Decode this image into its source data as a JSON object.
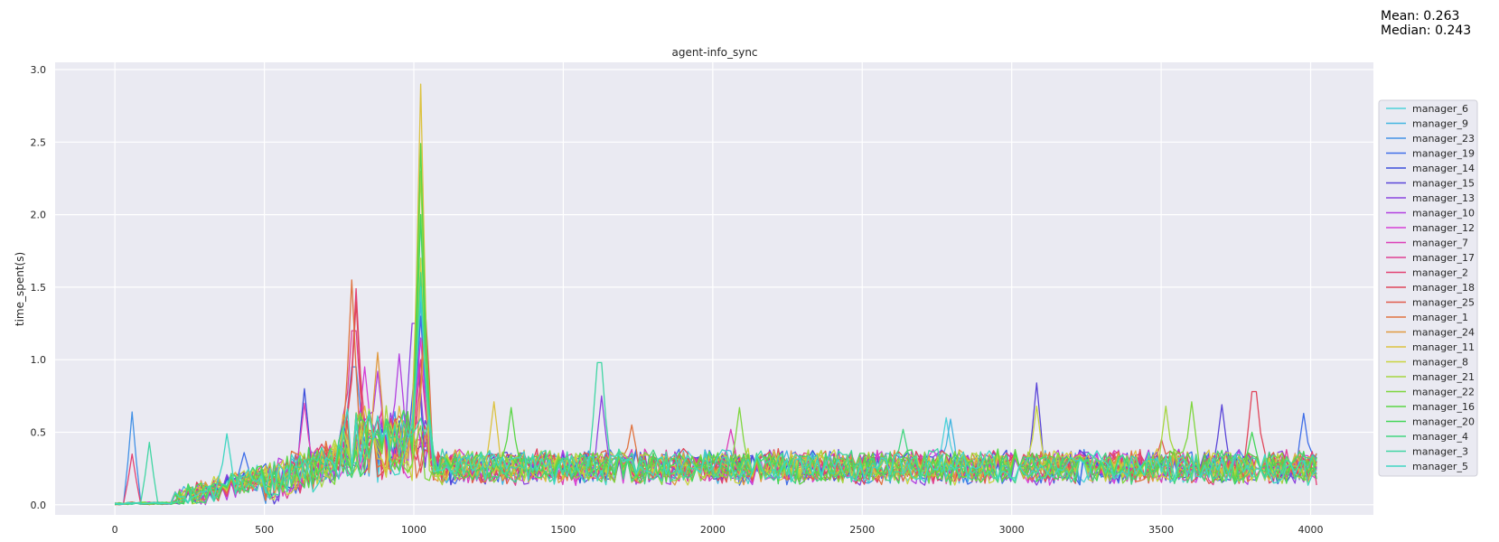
{
  "stats": {
    "mean": "Mean: 0.263",
    "median": "Median: 0.243"
  },
  "chart_data": {
    "type": "line",
    "title": "agent-info_sync",
    "xlabel": "",
    "ylabel": "time_spent(s)",
    "xlim": [
      -200,
      4210
    ],
    "ylim": [
      -0.07,
      3.05
    ],
    "xticks": [
      0,
      500,
      1000,
      1500,
      2000,
      2500,
      3000,
      3500,
      4000
    ],
    "yticks": [
      0.0,
      0.5,
      1.0,
      1.5,
      2.0,
      2.5,
      3.0
    ],
    "xtick_labels": [
      "0",
      "500",
      "1000",
      "1500",
      "2000",
      "2500",
      "3000",
      "3500",
      "4000"
    ],
    "ytick_labels": [
      "0.0",
      "0.5",
      "1.0",
      "1.5",
      "2.0",
      "2.5",
      "3.0"
    ],
    "grid": true,
    "legend_position": "right",
    "background": "#eaeaf2",
    "series_points_count": 280,
    "series_x_range": [
      0,
      4020
    ],
    "series": [
      {
        "name": "manager_6",
        "color": "#4dd2d9",
        "peaks": [
          [
            1020,
            2.0
          ],
          [
            2780,
            0.6
          ]
        ]
      },
      {
        "name": "manager_9",
        "color": "#43b5e0",
        "peaks": [
          [
            1020,
            1.4
          ],
          [
            2790,
            0.59
          ]
        ]
      },
      {
        "name": "manager_23",
        "color": "#4291e6",
        "peaks": [
          [
            55,
            0.64
          ],
          [
            800,
            0.95
          ],
          [
            1020,
            1.5
          ]
        ]
      },
      {
        "name": "manager_19",
        "color": "#3f6ee8",
        "peaks": [
          [
            430,
            0.36
          ],
          [
            1020,
            1.3
          ],
          [
            3980,
            0.63
          ]
        ]
      },
      {
        "name": "manager_14",
        "color": "#3d4fdb",
        "peaks": [
          [
            630,
            0.8
          ],
          [
            1010,
            1.1
          ]
        ]
      },
      {
        "name": "manager_15",
        "color": "#5a45d8",
        "peaks": [
          [
            3080,
            0.84
          ],
          [
            3700,
            0.69
          ]
        ]
      },
      {
        "name": "manager_13",
        "color": "#8a45e0",
        "peaks": [
          [
            1000,
            1.25
          ],
          [
            1630,
            0.75
          ]
        ]
      },
      {
        "name": "manager_10",
        "color": "#b23fe0",
        "peaks": [
          [
            950,
            1.04
          ],
          [
            880,
            0.92
          ]
        ]
      },
      {
        "name": "manager_12",
        "color": "#d63fd6",
        "peaks": [
          [
            830,
            0.95
          ],
          [
            1020,
            1.15
          ]
        ]
      },
      {
        "name": "manager_7",
        "color": "#dc3fb8",
        "peaks": [
          [
            630,
            0.7
          ],
          [
            2060,
            0.52
          ]
        ]
      },
      {
        "name": "manager_17",
        "color": "#e03f92",
        "peaks": [
          [
            800,
            1.2
          ],
          [
            1020,
            1.0
          ]
        ]
      },
      {
        "name": "manager_2",
        "color": "#e34273",
        "peaks": [
          [
            55,
            0.35
          ],
          [
            805,
            1.49
          ]
        ]
      },
      {
        "name": "manager_18",
        "color": "#e0465a",
        "peaks": [
          [
            810,
            1.4
          ],
          [
            3810,
            0.78
          ]
        ]
      },
      {
        "name": "manager_25",
        "color": "#e05a4a",
        "peaks": [
          [
            1040,
            1.39
          ],
          [
            3500,
            0.45
          ]
        ]
      },
      {
        "name": "manager_1",
        "color": "#e0733f",
        "peaks": [
          [
            795,
            1.55
          ],
          [
            1730,
            0.55
          ]
        ]
      },
      {
        "name": "manager_24",
        "color": "#e09a3f",
        "peaks": [
          [
            880,
            1.05
          ],
          [
            1040,
            1.2
          ]
        ]
      },
      {
        "name": "manager_11",
        "color": "#dcc23f",
        "peaks": [
          [
            1020,
            2.9
          ],
          [
            1270,
            0.71
          ]
        ]
      },
      {
        "name": "manager_8",
        "color": "#c9d43f",
        "peaks": [
          [
            1020,
            1.7
          ],
          [
            3080,
            0.68
          ]
        ]
      },
      {
        "name": "manager_21",
        "color": "#a6d63f",
        "peaks": [
          [
            1020,
            2.3
          ],
          [
            3520,
            0.68
          ]
        ]
      },
      {
        "name": "manager_22",
        "color": "#7fd63f",
        "peaks": [
          [
            2090,
            0.67
          ],
          [
            3600,
            0.71
          ]
        ]
      },
      {
        "name": "manager_16",
        "color": "#5ad645",
        "peaks": [
          [
            1020,
            2.49
          ],
          [
            1320,
            0.67
          ]
        ]
      },
      {
        "name": "manager_20",
        "color": "#45d65a",
        "peaks": [
          [
            1020,
            2.0
          ],
          [
            3800,
            0.5
          ]
        ]
      },
      {
        "name": "manager_4",
        "color": "#42d67f",
        "peaks": [
          [
            1020,
            1.6
          ],
          [
            2640,
            0.52
          ]
        ]
      },
      {
        "name": "manager_3",
        "color": "#40d6a3",
        "peaks": [
          [
            120,
            0.43
          ],
          [
            1620,
            0.98
          ]
        ]
      },
      {
        "name": "manager_5",
        "color": "#3fd6c2",
        "peaks": [
          [
            370,
            0.49
          ],
          [
            1020,
            1.5
          ]
        ]
      }
    ]
  }
}
